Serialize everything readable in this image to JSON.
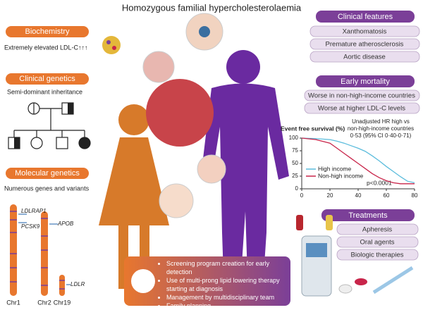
{
  "title": "Homozygous familial hypercholesterolaemia",
  "biochemistry": {
    "header": "Biochemistry",
    "text": "Extremely elevated LDL-C↑↑↑"
  },
  "clinical_genetics": {
    "header": "Clinical genetics",
    "text": "Semi-dominant inheritance"
  },
  "molecular_genetics": {
    "header": "Molecular genetics",
    "text": "Numerous genes and variants",
    "genes": [
      "LDLRAP1",
      "PCSK9",
      "APOB",
      "LDLR"
    ],
    "chromosomes": [
      "Chr1",
      "Chr2",
      "Chr19"
    ]
  },
  "clinical_features": {
    "header": "Clinical features",
    "items": [
      "Xanthomatosis",
      "Premature atherosclerosis",
      "Aortic disease"
    ]
  },
  "early_mortality": {
    "header": "Early mortality",
    "items": [
      "Worse in non-high-income countries",
      "Worse at higher LDL-C levels"
    ]
  },
  "chart_data": {
    "type": "line",
    "title": "Event free survival (%)",
    "annotation": [
      "Unadjusted HR high vs",
      "non-high-income countries",
      "0·53 (95% CI 0·40-0·71)"
    ],
    "pvalue": "p<0.0001",
    "x": [
      0,
      10,
      20,
      25,
      30,
      35,
      40,
      45,
      50,
      55,
      60,
      65,
      70,
      75,
      80
    ],
    "series": [
      {
        "name": "High income",
        "color": "#5bbcdc",
        "values": [
          100,
          99,
          97,
          94,
          90,
          85,
          80,
          74,
          65,
          55,
          44,
          34,
          24,
          15,
          12
        ]
      },
      {
        "name": "Non-high income",
        "color": "#c8254a",
        "values": [
          100,
          97,
          90,
          80,
          70,
          60,
          50,
          40,
          30,
          22,
          16,
          12,
          10,
          10,
          10
        ]
      }
    ],
    "xlim": [
      0,
      80
    ],
    "ylim": [
      0,
      100
    ],
    "xticks": [
      0,
      20,
      40,
      60,
      80
    ],
    "yticks": [
      0,
      25,
      50,
      75,
      100
    ]
  },
  "treatments": {
    "header": "Treatments",
    "items": [
      "Apheresis",
      "Oral agents",
      "Biologic therapies"
    ]
  },
  "recommendations": {
    "items": [
      "Screening program creation for early detection",
      "Use of multi-prong lipid lowering therapy starting at diagnosis",
      "Management by multidisciplinary team",
      "Family planning"
    ]
  }
}
